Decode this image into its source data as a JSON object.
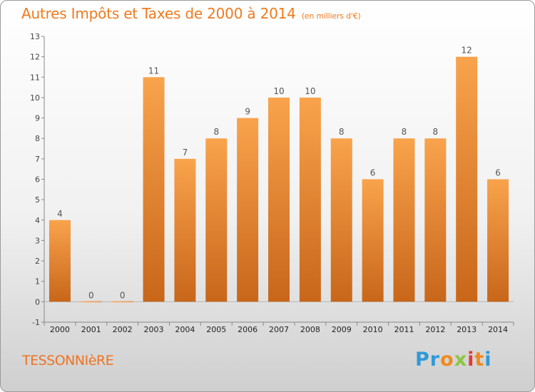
{
  "title": "Autres Impôts et Taxes de 2000 à 2014",
  "title_unit": "(en milliers d'€)",
  "commune": "TESSONNIèRE",
  "logo": {
    "letters": [
      "P",
      "r",
      "o",
      "x",
      "i",
      "t",
      "i"
    ],
    "colors": [
      "#2e9ad8",
      "#2e9ad8",
      "#f08a1e",
      "#8cc63f",
      "#e53935",
      "#f08a1e",
      "#2e9ad8"
    ]
  },
  "colors": {
    "bar_light": "#f9a34c",
    "bar_dark": "#c8661a",
    "title": "#f07a1e"
  },
  "chart_data": {
    "type": "bar",
    "categories": [
      "2000",
      "2001",
      "2002",
      "2003",
      "2004",
      "2005",
      "2006",
      "2007",
      "2008",
      "2009",
      "2010",
      "2011",
      "2012",
      "2013",
      "2014"
    ],
    "values": [
      4,
      0,
      0,
      11,
      7,
      8,
      9,
      10,
      10,
      8,
      6,
      8,
      8,
      12,
      6
    ],
    "data_labels": [
      "4",
      "0",
      "0",
      "11",
      "7",
      "8",
      "9",
      "10",
      "10",
      "8",
      "6",
      "8",
      "8",
      "12",
      "6"
    ],
    "ylim": [
      -1,
      13
    ],
    "yticks": [
      "-1",
      "0",
      "1",
      "2",
      "3",
      "4",
      "5",
      "6",
      "7",
      "8",
      "9",
      "10",
      "11",
      "12",
      "13"
    ],
    "grid": false,
    "legend": "none"
  }
}
